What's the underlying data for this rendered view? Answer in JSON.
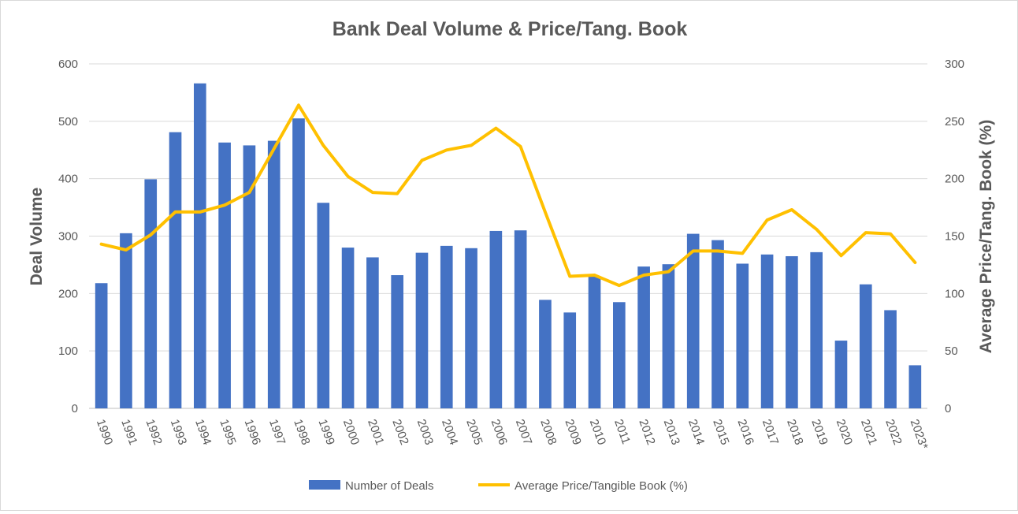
{
  "chart_data": {
    "type": "bar",
    "title": "Bank Deal Volume & Price/Tang. Book",
    "ylabel": "Deal Volume",
    "y2label": "Average Price/Tang. Book (%)",
    "ylim": [
      0,
      600
    ],
    "y2lim": [
      0,
      300
    ],
    "yticks": [
      0,
      100,
      200,
      300,
      400,
      500,
      600
    ],
    "y2ticks": [
      0,
      50,
      100,
      150,
      200,
      250,
      300
    ],
    "grid": true,
    "legend_position": "bottom",
    "categories": [
      "1990",
      "1991",
      "1992",
      "1993",
      "1994",
      "1995",
      "1996",
      "1997",
      "1998",
      "1999",
      "2000",
      "2001",
      "2002",
      "2003",
      "2004",
      "2005",
      "2006",
      "2007",
      "2008",
      "2009",
      "2010",
      "2011",
      "2012",
      "2013",
      "2014",
      "2015",
      "2016",
      "2017",
      "2018",
      "2019",
      "2020",
      "2021",
      "2022",
      "2023*"
    ],
    "series": [
      {
        "name": "Number of Deals",
        "type": "bar",
        "axis": "left",
        "color": "#4472c4",
        "values": [
          218,
          305,
          399,
          481,
          566,
          463,
          458,
          466,
          505,
          358,
          280,
          263,
          232,
          271,
          283,
          279,
          309,
          310,
          189,
          167,
          230,
          185,
          247,
          251,
          304,
          293,
          252,
          268,
          265,
          272,
          118,
          216,
          171,
          75
        ]
      },
      {
        "name": "Average Price/Tangible Book (%)",
        "type": "line",
        "axis": "right",
        "color": "#ffc000",
        "values": [
          143,
          138,
          151,
          171,
          171,
          177,
          188,
          226,
          264,
          229,
          202,
          188,
          187,
          216,
          225,
          229,
          244,
          228,
          171,
          115,
          116,
          107,
          116,
          119,
          137,
          137,
          135,
          164,
          173,
          156,
          133,
          153,
          152,
          127
        ]
      }
    ]
  }
}
